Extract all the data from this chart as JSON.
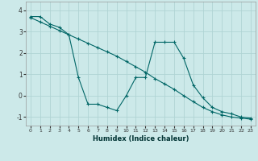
{
  "xlabel": "Humidex (Indice chaleur)",
  "background_color": "#cce9e9",
  "grid_color": "#b0d4d4",
  "line_color": "#006666",
  "xlim": [
    -0.5,
    23.5
  ],
  "ylim": [
    -1.4,
    4.4
  ],
  "yticks": [
    -1,
    0,
    1,
    2,
    3,
    4
  ],
  "xticks": [
    0,
    1,
    2,
    3,
    4,
    5,
    6,
    7,
    8,
    9,
    10,
    11,
    12,
    13,
    14,
    15,
    16,
    17,
    18,
    19,
    20,
    21,
    22,
    23
  ],
  "series1_x": [
    0,
    1,
    2,
    3,
    4,
    5,
    6,
    7,
    8,
    9,
    10,
    11,
    12,
    13,
    14,
    15,
    16,
    17,
    18,
    19,
    20,
    21,
    22,
    23
  ],
  "series1_y": [
    3.7,
    3.7,
    3.35,
    3.2,
    2.85,
    0.85,
    -0.4,
    -0.4,
    -0.55,
    -0.7,
    0.0,
    0.85,
    0.85,
    2.5,
    2.5,
    2.5,
    1.75,
    0.5,
    -0.1,
    -0.55,
    -0.75,
    -0.85,
    -1.0,
    -1.05
  ],
  "series2_x": [
    0,
    1,
    2,
    3,
    4,
    5,
    6,
    7,
    8,
    9,
    10,
    11,
    12,
    13,
    14,
    15,
    16,
    17,
    18,
    19,
    20,
    21,
    22,
    23
  ],
  "series2_y": [
    3.65,
    3.45,
    3.25,
    3.05,
    2.85,
    2.65,
    2.45,
    2.25,
    2.05,
    1.85,
    1.6,
    1.35,
    1.1,
    0.8,
    0.55,
    0.3,
    0.0,
    -0.28,
    -0.55,
    -0.75,
    -0.9,
    -1.0,
    -1.05,
    -1.1
  ]
}
